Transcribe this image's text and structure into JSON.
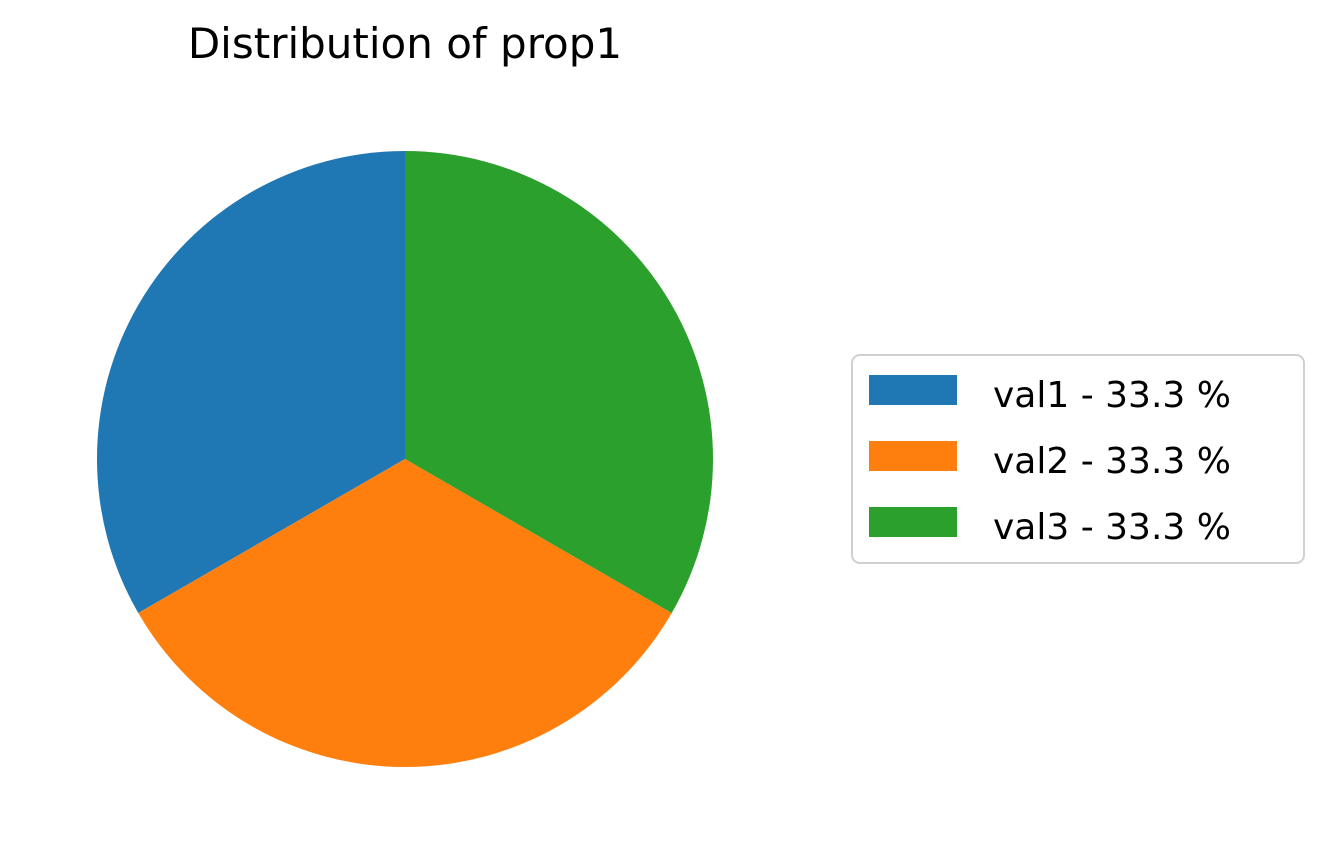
{
  "chart_data": {
    "type": "pie",
    "title": "Distribution of prop1",
    "slices": [
      {
        "label": "val1",
        "value": 33.3,
        "legend_label": "val1 - 33.3 %",
        "color": "#1f77b4"
      },
      {
        "label": "val2",
        "value": 33.3,
        "legend_label": "val2 - 33.3 %",
        "color": "#ff7f0e"
      },
      {
        "label": "val3",
        "value": 33.3,
        "legend_label": "val3 - 33.3 %",
        "color": "#2ca02c"
      }
    ],
    "start_angle_deg": 90,
    "direction": "counterclockwise",
    "legend_placement": "center-right"
  }
}
